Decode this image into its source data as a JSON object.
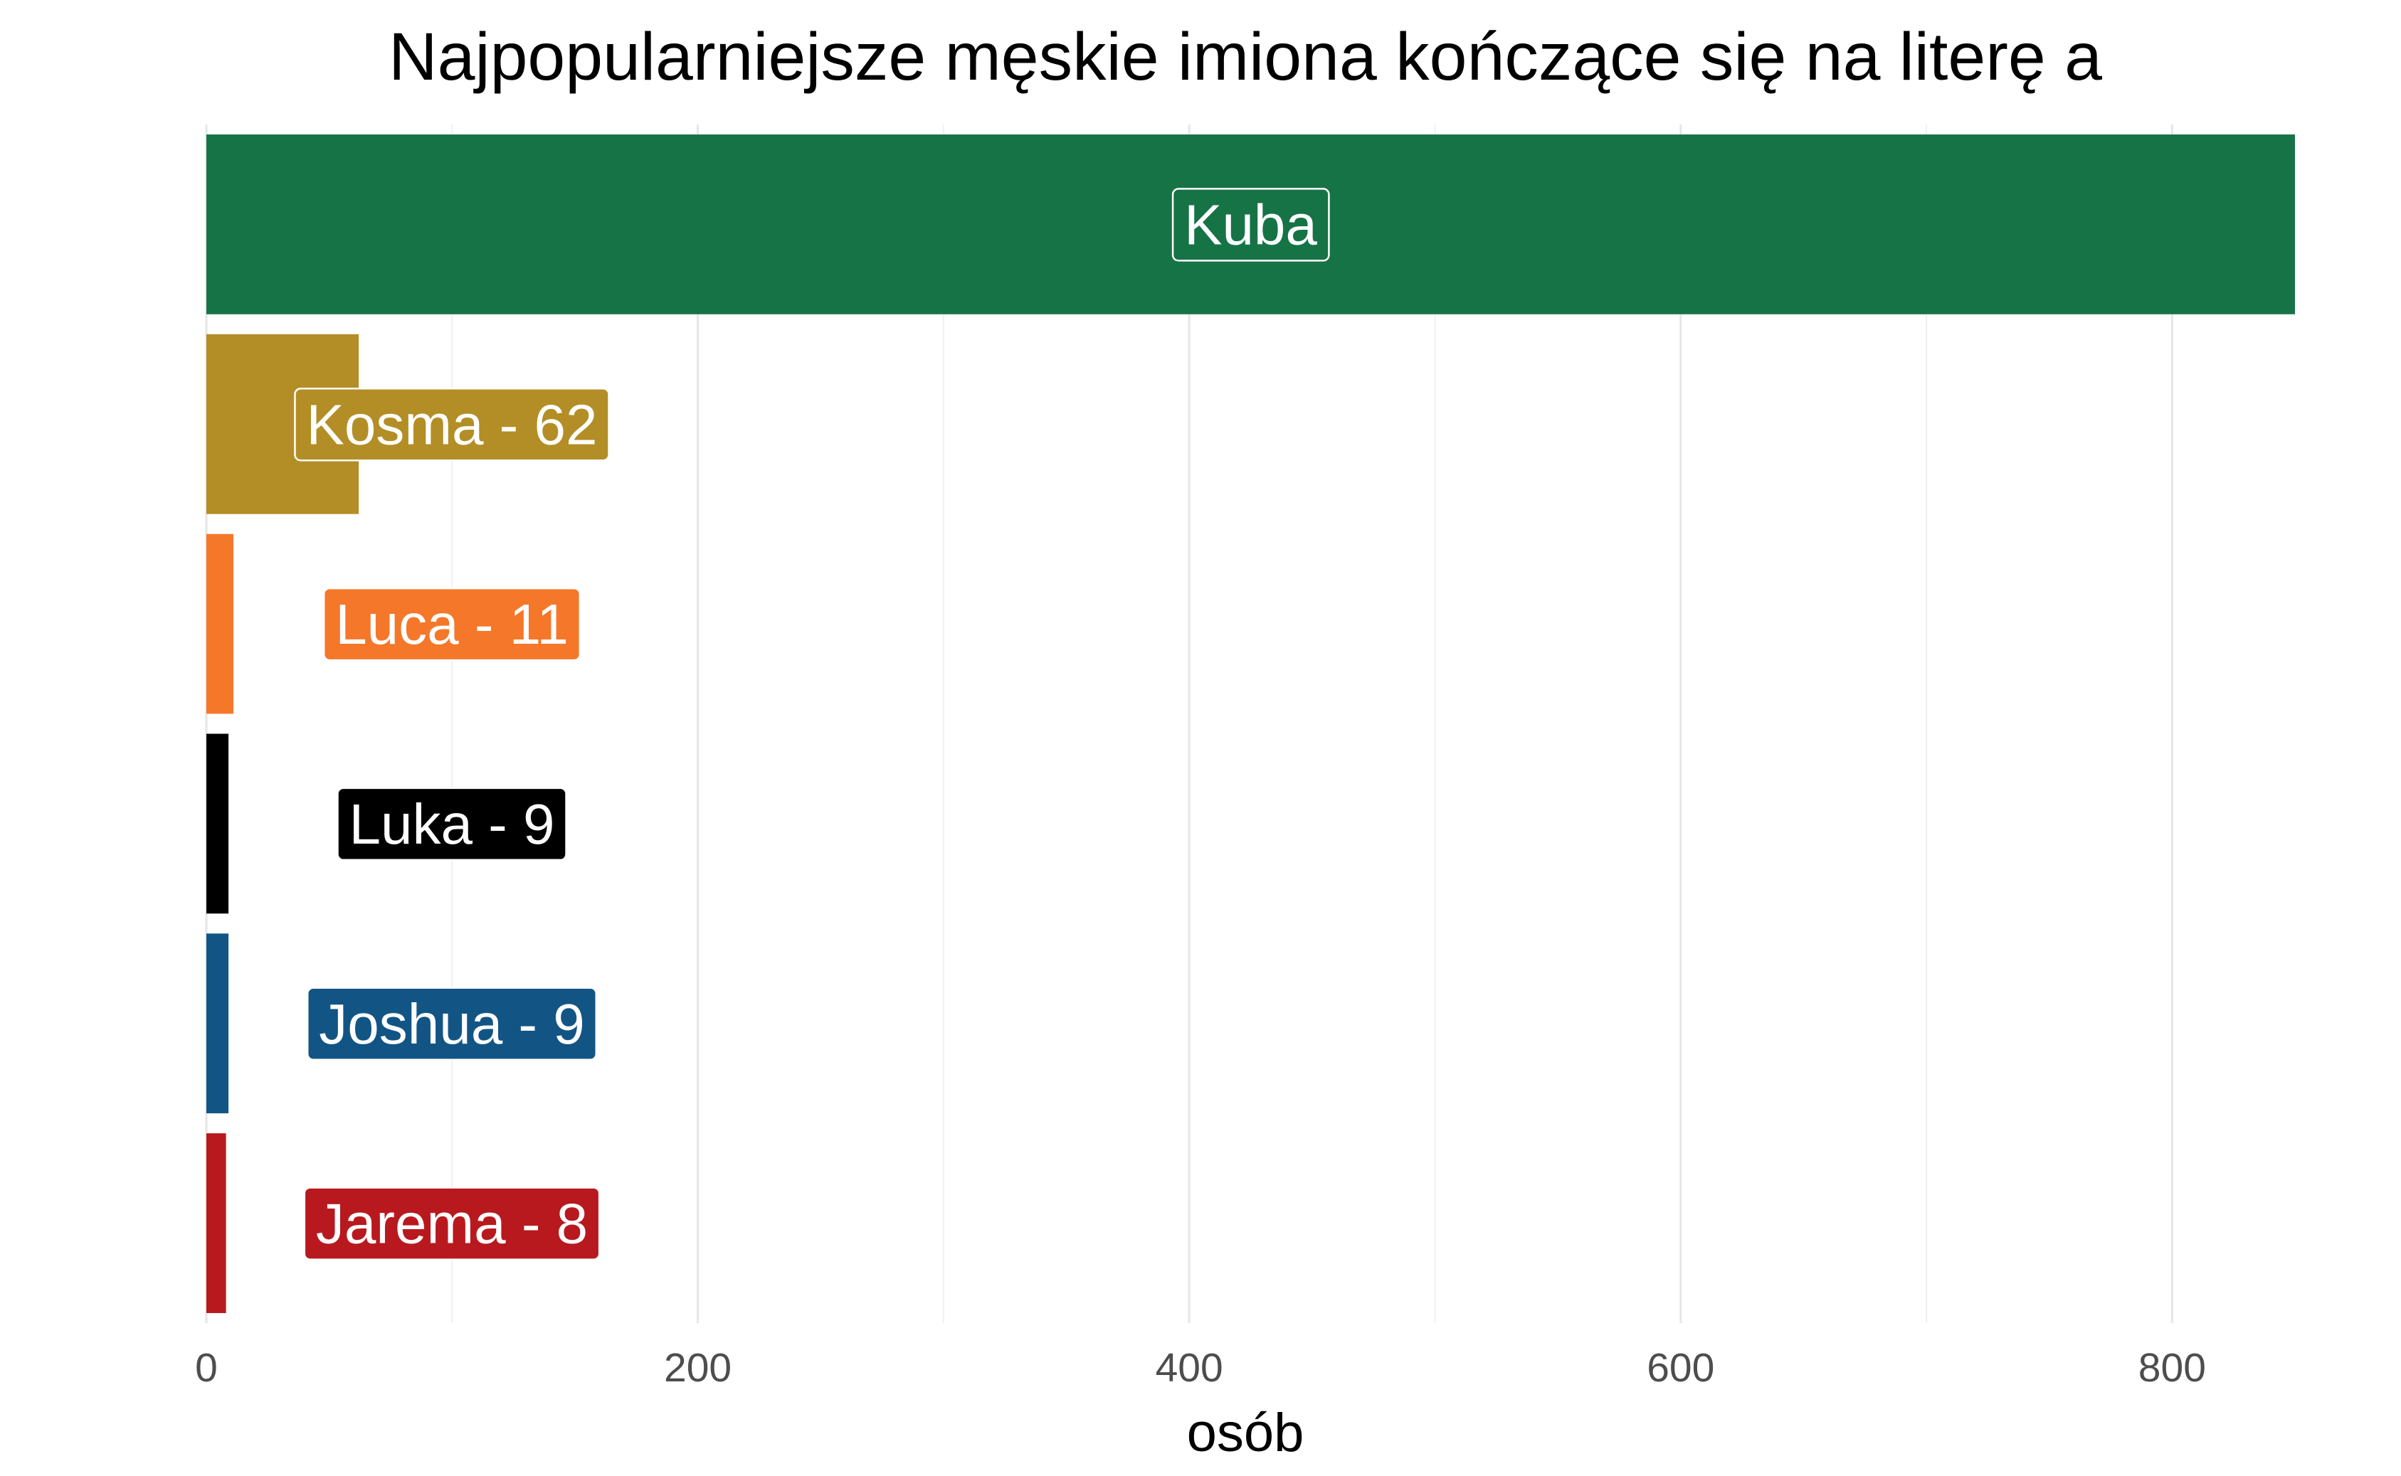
{
  "chart_data": {
    "type": "bar",
    "orientation": "horizontal",
    "title": "Najpopularniejsze męskie imiona kończące się na literę a",
    "xlabel": "osób",
    "ylabel": "",
    "xlim": [
      0,
      850
    ],
    "x_ticks": [
      0,
      200,
      400,
      600,
      800
    ],
    "x_tick_labels": [
      "0",
      "200",
      "400",
      "600",
      "800"
    ],
    "grid": true,
    "legend": "none",
    "categories": [
      "Kuba",
      "Kosma",
      "Luca",
      "Luka",
      "Joshua",
      "Jarema"
    ],
    "values": [
      850,
      62,
      11,
      9,
      9,
      8
    ],
    "labels": [
      "Kuba",
      "Kosma - 62",
      "Luca - 11",
      "Luka - 9",
      "Joshua - 9",
      "Jarema - 8"
    ],
    "colors": [
      "#167346",
      "#b38e26",
      "#f5772a",
      "#000000",
      "#125585",
      "#b8191e"
    ]
  }
}
